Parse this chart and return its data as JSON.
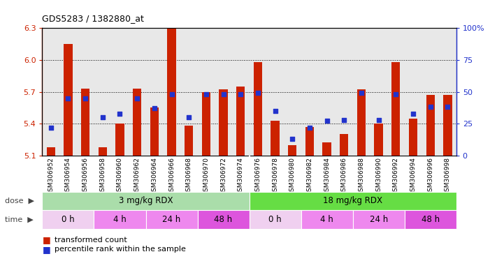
{
  "title": "GDS5283 / 1382880_at",
  "samples": [
    "GSM306952",
    "GSM306954",
    "GSM306956",
    "GSM306958",
    "GSM306960",
    "GSM306962",
    "GSM306964",
    "GSM306966",
    "GSM306968",
    "GSM306970",
    "GSM306972",
    "GSM306974",
    "GSM306976",
    "GSM306978",
    "GSM306980",
    "GSM306982",
    "GSM306984",
    "GSM306986",
    "GSM306988",
    "GSM306990",
    "GSM306992",
    "GSM306994",
    "GSM306996",
    "GSM306998"
  ],
  "bar_values": [
    5.18,
    6.15,
    5.73,
    5.18,
    5.4,
    5.73,
    5.55,
    6.3,
    5.38,
    5.7,
    5.72,
    5.75,
    5.98,
    5.43,
    5.2,
    5.37,
    5.22,
    5.3,
    5.72,
    5.4,
    5.98,
    5.45,
    5.67,
    5.67
  ],
  "percentile_values": [
    22,
    45,
    45,
    30,
    33,
    45,
    37,
    48,
    30,
    48,
    48,
    48,
    49,
    35,
    13,
    22,
    27,
    28,
    49,
    28,
    48,
    33,
    38,
    38
  ],
  "ymin": 5.1,
  "ymax": 6.3,
  "yticks": [
    5.1,
    5.4,
    5.7,
    6.0,
    6.3
  ],
  "pct_yticks": [
    0,
    25,
    50,
    75,
    100
  ],
  "bar_color": "#cc2200",
  "blue_color": "#2233cc",
  "bg_color": "#e8e8e8",
  "dose_colors": [
    "#aaddaa",
    "#66dd44"
  ],
  "dose_labels": [
    "3 mg/kg RDX",
    "18 mg/kg RDX"
  ],
  "time_entries": [
    {
      "label": "0 h",
      "start": 0,
      "end": 3,
      "color": "#f0d0f0"
    },
    {
      "label": "4 h",
      "start": 3,
      "end": 6,
      "color": "#ee88ee"
    },
    {
      "label": "24 h",
      "start": 6,
      "end": 9,
      "color": "#ee88ee"
    },
    {
      "label": "48 h",
      "start": 9,
      "end": 12,
      "color": "#dd55dd"
    },
    {
      "label": "0 h",
      "start": 12,
      "end": 15,
      "color": "#f0d0f0"
    },
    {
      "label": "4 h",
      "start": 15,
      "end": 18,
      "color": "#ee88ee"
    },
    {
      "label": "24 h",
      "start": 18,
      "end": 21,
      "color": "#ee88ee"
    },
    {
      "label": "48 h",
      "start": 21,
      "end": 24,
      "color": "#dd55dd"
    }
  ]
}
